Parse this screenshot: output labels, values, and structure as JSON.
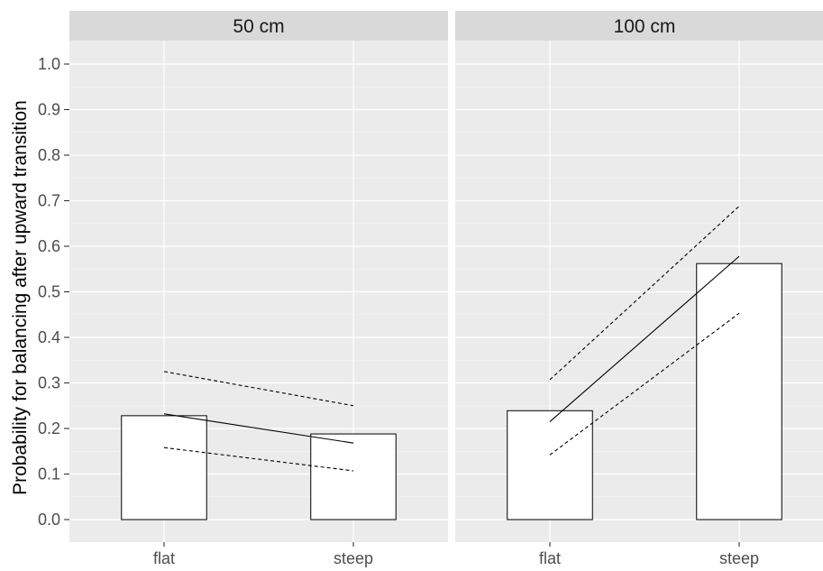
{
  "chart_data": {
    "type": "bar",
    "ylabel": "Probability for balancing after upward transition",
    "xlabel": "",
    "ylim": [
      -0.05,
      1.05
    ],
    "y_ticks": [
      "0.0",
      "0.1",
      "0.2",
      "0.3",
      "0.4",
      "0.5",
      "0.6",
      "0.7",
      "0.8",
      "0.9",
      "1.0"
    ],
    "categories": [
      "flat",
      "steep"
    ],
    "facets": [
      {
        "label": "50 cm",
        "bars": [
          0.228,
          0.188
        ],
        "fit_line": [
          0.232,
          0.168
        ],
        "upper_ci": [
          0.325,
          0.25
        ],
        "lower_ci": [
          0.158,
          0.107
        ]
      },
      {
        "label": "100 cm",
        "bars": [
          0.239,
          0.562
        ],
        "fit_line": [
          0.215,
          0.578
        ],
        "upper_ci": [
          0.307,
          0.688
        ],
        "lower_ci": [
          0.142,
          0.453
        ]
      }
    ],
    "grid": true,
    "colors": {
      "panel_background": "#ebebeb",
      "strip_background": "#d9d9d9",
      "bar_fill": "#ffffff",
      "bar_stroke": "#000000",
      "line": "#000000"
    }
  }
}
